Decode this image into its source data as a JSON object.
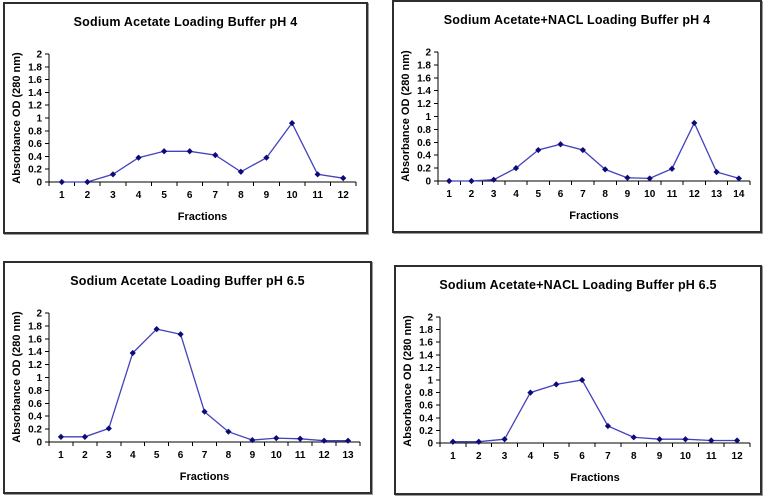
{
  "page": {
    "background": "#ffffff",
    "panel_border_color": "#2e2e2e"
  },
  "colors": {
    "line": "#4242bd",
    "marker": "#0b0b7a",
    "axis": "#000000",
    "text": "#000000"
  },
  "chart_data": [
    {
      "type": "line",
      "title": "Sodium Acetate Loading Buffer pH 4",
      "xlabel": "Fractions",
      "ylabel": "Absorbance OD (280 nm)",
      "ylim": [
        0,
        2
      ],
      "y_step": 0.2,
      "grid": false,
      "legend": "none",
      "marker": "diamond",
      "categories": [
        "1",
        "2",
        "3",
        "4",
        "5",
        "6",
        "7",
        "8",
        "9",
        "10",
        "11",
        "12"
      ],
      "values": [
        0.0,
        0.0,
        0.12,
        0.38,
        0.48,
        0.48,
        0.42,
        0.16,
        0.38,
        0.92,
        0.12,
        0.06
      ]
    },
    {
      "type": "line",
      "title": "Sodium Acetate+NACL Loading Buffer pH 4",
      "xlabel": "Fractions",
      "ylabel": "Absorbance OD (280 nm)",
      "ylim": [
        0,
        2
      ],
      "y_step": 0.2,
      "grid": false,
      "legend": "none",
      "marker": "diamond",
      "categories": [
        "1",
        "2",
        "3",
        "4",
        "5",
        "6",
        "7",
        "8",
        "9",
        "10",
        "11",
        "12",
        "13",
        "14"
      ],
      "values": [
        0.0,
        0.0,
        0.02,
        0.2,
        0.48,
        0.57,
        0.48,
        0.18,
        0.05,
        0.04,
        0.19,
        0.9,
        0.14,
        0.04
      ]
    },
    {
      "type": "line",
      "title": "Sodium Acetate Loading Buffer pH 6.5",
      "xlabel": "Fractions",
      "ylabel": "Absorbance OD (280 nm)",
      "ylim": [
        0,
        2
      ],
      "y_step": 0.2,
      "grid": false,
      "legend": "none",
      "marker": "diamond",
      "categories": [
        "1",
        "2",
        "3",
        "4",
        "5",
        "6",
        "7",
        "8",
        "9",
        "10",
        "11",
        "12",
        "13"
      ],
      "values": [
        0.08,
        0.08,
        0.21,
        1.38,
        1.75,
        1.67,
        0.47,
        0.16,
        0.03,
        0.06,
        0.05,
        0.02,
        0.02
      ]
    },
    {
      "type": "line",
      "title": "Sodium Acetate+NACL Loading Buffer pH 6.5",
      "xlabel": "Fractions",
      "ylabel": "Absorbance OD (280 nm)",
      "ylim": [
        0,
        2
      ],
      "y_step": 0.2,
      "grid": false,
      "legend": "none",
      "marker": "diamond",
      "categories": [
        "1",
        "2",
        "3",
        "4",
        "5",
        "6",
        "7",
        "8",
        "9",
        "10",
        "11",
        "12"
      ],
      "values": [
        0.02,
        0.02,
        0.06,
        0.8,
        0.93,
        1.0,
        0.27,
        0.09,
        0.06,
        0.06,
        0.04,
        0.04
      ]
    }
  ]
}
